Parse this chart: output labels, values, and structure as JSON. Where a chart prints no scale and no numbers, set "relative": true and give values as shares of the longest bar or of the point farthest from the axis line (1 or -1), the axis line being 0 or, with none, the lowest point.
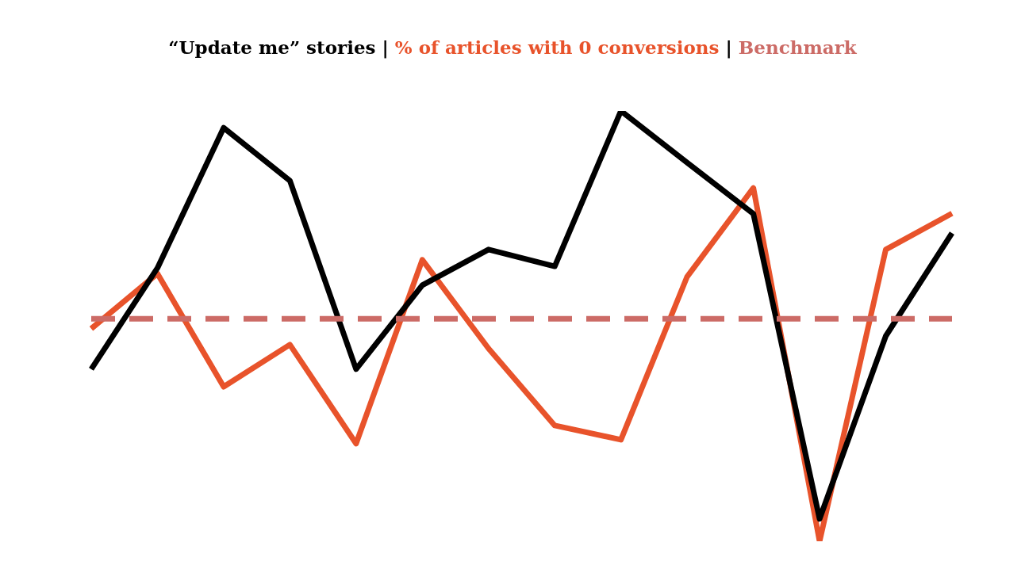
{
  "chart_data": {
    "type": "line",
    "title": "“Update me” stories | % of articles with 0 conversions | Benchmark",
    "relative": true,
    "categories": [
      null,
      null,
      null,
      null,
      null,
      null,
      null,
      null,
      null,
      null,
      null,
      null,
      null,
      null
    ],
    "series": [
      {
        "color": "#000000",
        "values": [
          0.4,
          0.635,
          0.961,
          0.838,
          0.4,
          0.595,
          0.678,
          0.639,
          1,
          0.88,
          0.761,
          0.052,
          0.477,
          0.716
        ]
      },
      {
        "color": "#e8532b",
        "values": [
          0.494,
          0.622,
          0.359,
          0.457,
          0.227,
          0.654,
          0.448,
          0.269,
          0.236,
          0.615,
          0.821,
          0,
          0.678,
          0.762
        ]
      }
    ],
    "ref_lines": [
      {
        "axis": "y",
        "value": 0.517,
        "color": "#cc6b66",
        "line_style": "dashed"
      }
    ],
    "legend": false,
    "grid": false,
    "marker": "none",
    "line_style": "solid"
  }
}
